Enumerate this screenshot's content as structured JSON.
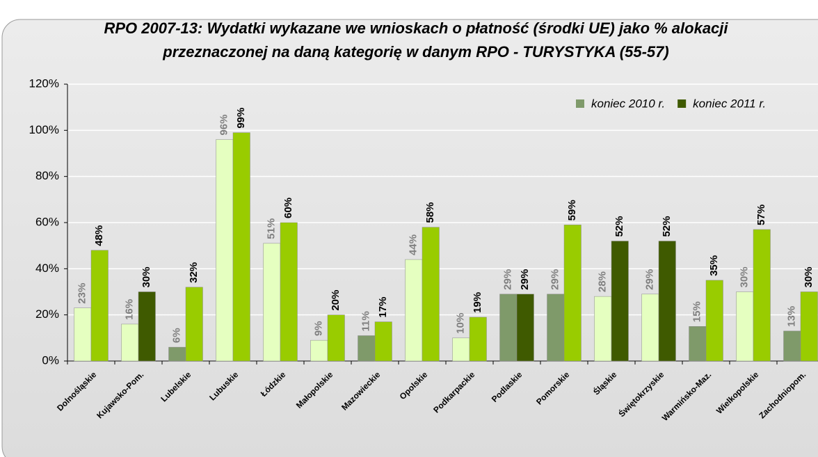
{
  "chart_data": {
    "type": "bar",
    "title": [
      "RPO 2007-13: Wydatki wykazane we wnioskach o płatność (środki UE) jako % alokacji",
      "przeznaczonej na daną kategorię w danym RPO - TURYSTYKA (55-57)"
    ],
    "categories": [
      "Dolnośląskie",
      "Kujawsko-Pom.",
      "Lubelskie",
      "Lubuskie",
      "Łódzkie",
      "Małopolskie",
      "Mazowieckie",
      "Opolskie",
      "Podkarpackie",
      "Podlaskie",
      "Pomorskie",
      "Śląskie",
      "Świętokrzyskie",
      "Warmińsko-Maz.",
      "Wielkopolskie",
      "Zachodniopom."
    ],
    "series": [
      {
        "name": "koniec 2010 r.",
        "color": "#7f9a6a",
        "values": [
          23,
          16,
          6,
          96,
          51,
          9,
          11,
          44,
          10,
          29,
          29,
          28,
          29,
          15,
          30,
          13
        ],
        "value_labels": [
          "23%",
          "16%",
          "6%",
          "96%",
          "51%",
          "9%",
          "11%",
          "44%",
          "10%",
          "29%",
          "29%",
          "28%",
          "29%",
          "15%",
          "30%",
          "13%"
        ],
        "colors": [
          "#e5ffc0",
          "#e5ffc0",
          "#7f9a6a",
          "#e5ffc0",
          "#e5ffc0",
          "#e5ffc0",
          "#7f9a6a",
          "#e5ffc0",
          "#e5ffc0",
          "#7f9a6a",
          "#7f9a6a",
          "#e5ffc0",
          "#e5ffc0",
          "#7f9a6a",
          "#e5ffc0",
          "#7f9a6a"
        ]
      },
      {
        "name": "koniec 2011 r.",
        "color": "#3f5a00",
        "values": [
          48,
          30,
          32,
          99,
          60,
          20,
          17,
          58,
          19,
          29,
          59,
          52,
          52,
          35,
          57,
          30
        ],
        "value_labels": [
          "48%",
          "30%",
          "32%",
          "99%",
          "60%",
          "20%",
          "17%",
          "58%",
          "19%",
          "29%",
          "59%",
          "52%",
          "52%",
          "35%",
          "57%",
          "30%"
        ],
        "colors": [
          "#99cc00",
          "#3f5a00",
          "#99cc00",
          "#99cc00",
          "#99cc00",
          "#99cc00",
          "#99cc00",
          "#99cc00",
          "#99cc00",
          "#3f5a00",
          "#99cc00",
          "#3f5a00",
          "#3f5a00",
          "#99cc00",
          "#99cc00",
          "#99cc00"
        ]
      }
    ],
    "ylim": [
      0,
      120
    ],
    "yticks": [
      {
        "value": 0,
        "label": "0%"
      },
      {
        "value": 20,
        "label": "20%"
      },
      {
        "value": 40,
        "label": "40%"
      },
      {
        "value": 60,
        "label": "60%"
      },
      {
        "value": 80,
        "label": "80%"
      },
      {
        "value": 100,
        "label": "100%"
      },
      {
        "value": 120,
        "label": "120%"
      }
    ],
    "grid": true,
    "legend": "top-right"
  }
}
